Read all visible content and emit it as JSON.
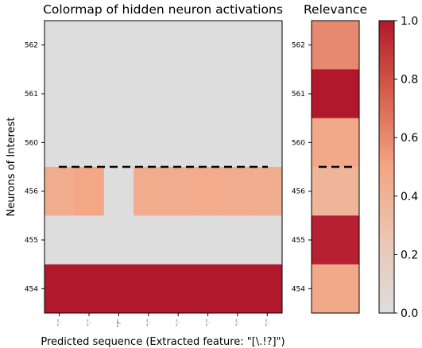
{
  "chart_data": [
    {
      "type": "heatmap",
      "title": "Colormap of hidden neuron activations",
      "xlabel": "Predicted sequence (Extracted feature: \"[\\.!?]\")",
      "ylabel": "Neurons of Interest",
      "x_tick_labels": [
        "\".\"",
        "\".\"",
        "\"?\"",
        "\".\"",
        "\".\"",
        "\".\"",
        "\".\"",
        "\".\""
      ],
      "y_tick_labels": [
        "562",
        "561",
        "560",
        "456",
        "455",
        "454"
      ],
      "values": [
        [
          0.0,
          0.0,
          0.0,
          0.0,
          0.0,
          0.0,
          0.0,
          0.0
        ],
        [
          0.0,
          0.0,
          0.0,
          0.0,
          0.0,
          0.0,
          0.0,
          0.0
        ],
        [
          0.0,
          0.0,
          0.0,
          0.0,
          0.0,
          0.0,
          0.0,
          0.0
        ],
        [
          0.44,
          0.48,
          0.0,
          0.44,
          0.44,
          0.45,
          0.44,
          0.43
        ],
        [
          0.0,
          0.0,
          0.0,
          0.0,
          0.0,
          0.0,
          0.0,
          0.0
        ],
        [
          1.0,
          1.0,
          1.0,
          1.0,
          1.0,
          1.0,
          1.0,
          1.0
        ]
      ],
      "vmin": 0,
      "vmax": 1,
      "separator_between_rows": [
        "560",
        "456"
      ]
    },
    {
      "type": "heatmap",
      "title": "Relevance",
      "y_tick_labels": [
        "562",
        "561",
        "560",
        "456",
        "455",
        "454"
      ],
      "values": [
        0.6,
        1.0,
        0.46,
        0.36,
        0.97,
        0.46
      ],
      "vmin": 0,
      "vmax": 1,
      "separator_between_rows": [
        "560",
        "456"
      ]
    }
  ],
  "colorbar": {
    "ticks": [
      "0.0",
      "0.2",
      "0.4",
      "0.6",
      "0.8",
      "1.0"
    ],
    "colormap": [
      "#dddddd",
      "#f4a582",
      "#b2182b"
    ]
  }
}
